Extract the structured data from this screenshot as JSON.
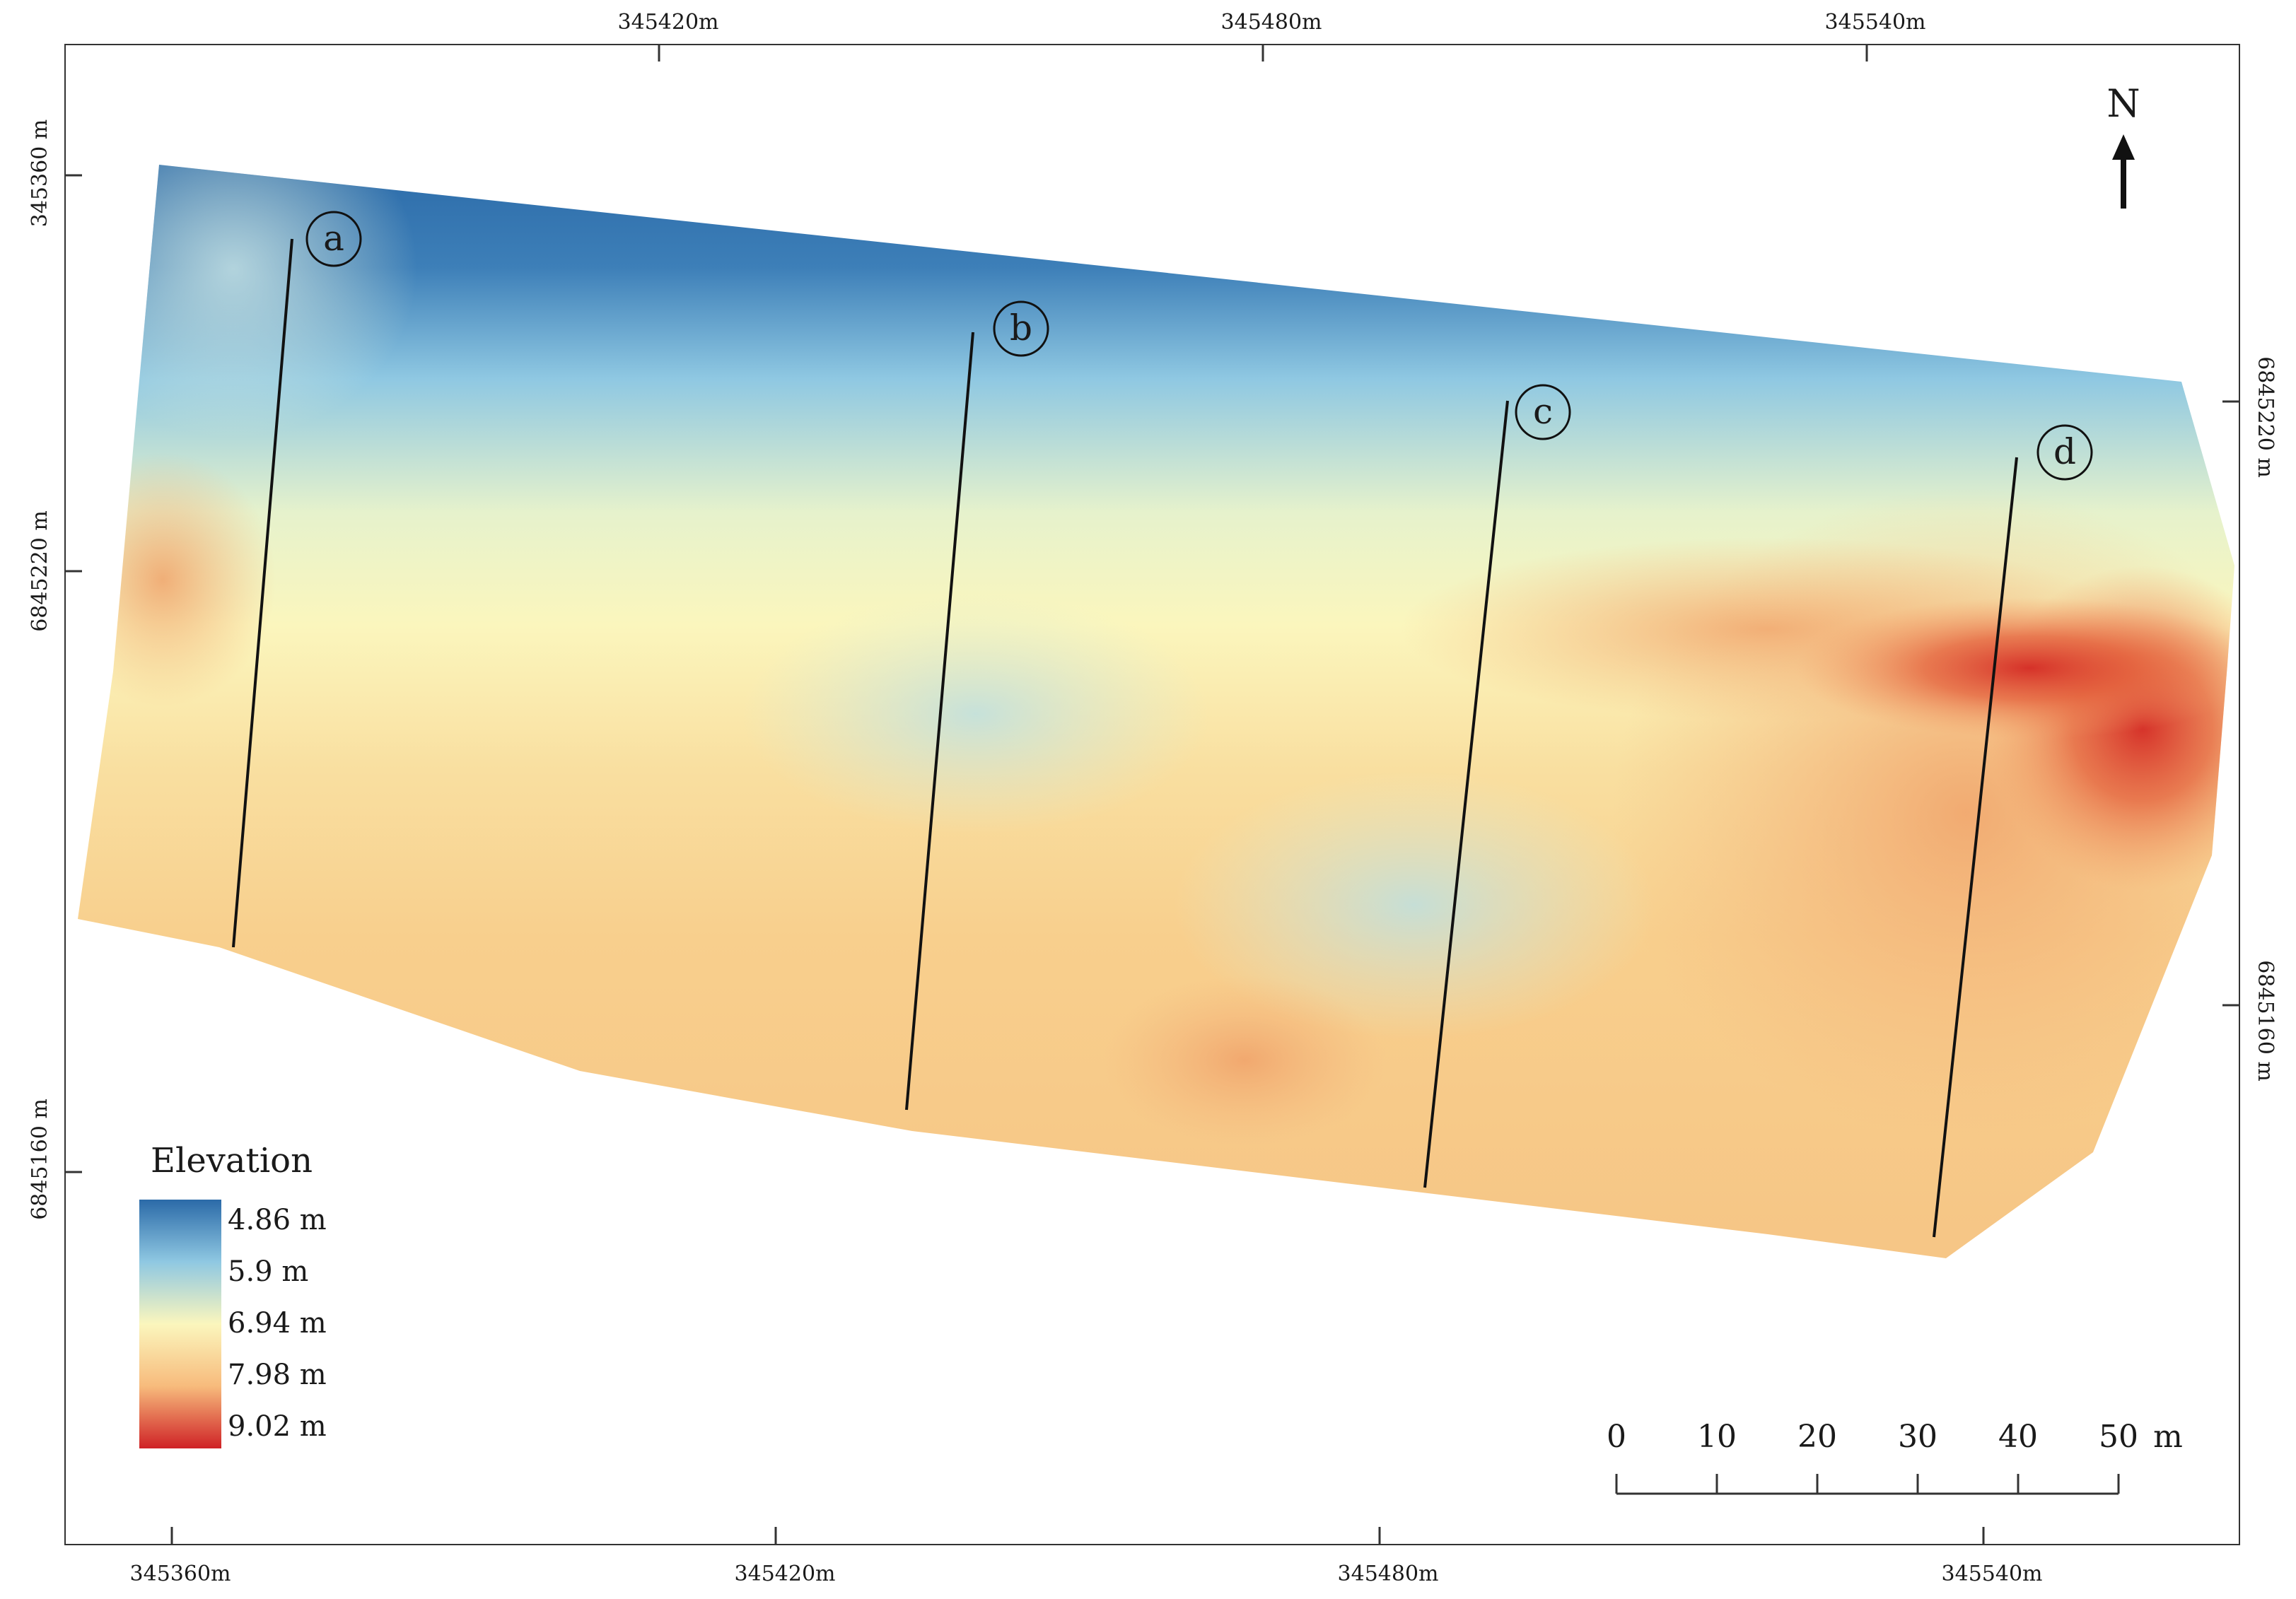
{
  "map": {
    "colors": {
      "low": "#2b6aa8",
      "mid_low": "#8fc8e2",
      "mid": "#fbf6bd",
      "mid_high": "#f7bb7c",
      "high": "#cf2226"
    }
  },
  "grid": {
    "top_x_labels": [
      "345420m",
      "345480m",
      "345540m"
    ],
    "bottom_x_labels": [
      "345360m",
      "345420m",
      "345480m",
      "345540m"
    ],
    "left_y_labels": [
      "345360 m",
      "6845220 m",
      "6845160 m"
    ],
    "right_y_labels": [
      "6845220 m",
      "6845160 m"
    ]
  },
  "legend": {
    "title": "Elevation",
    "values": [
      "4.86 m",
      "5.9 m",
      "6.94 m",
      "7.98 m",
      "9.02 m"
    ]
  },
  "scale_bar": {
    "ticks": [
      "0",
      "10",
      "20",
      "30",
      "40",
      "50"
    ],
    "unit": "m"
  },
  "north_arrow": {
    "label": "N"
  },
  "profiles": [
    {
      "label": "a"
    },
    {
      "label": "b"
    },
    {
      "label": "c"
    },
    {
      "label": "d"
    }
  ]
}
